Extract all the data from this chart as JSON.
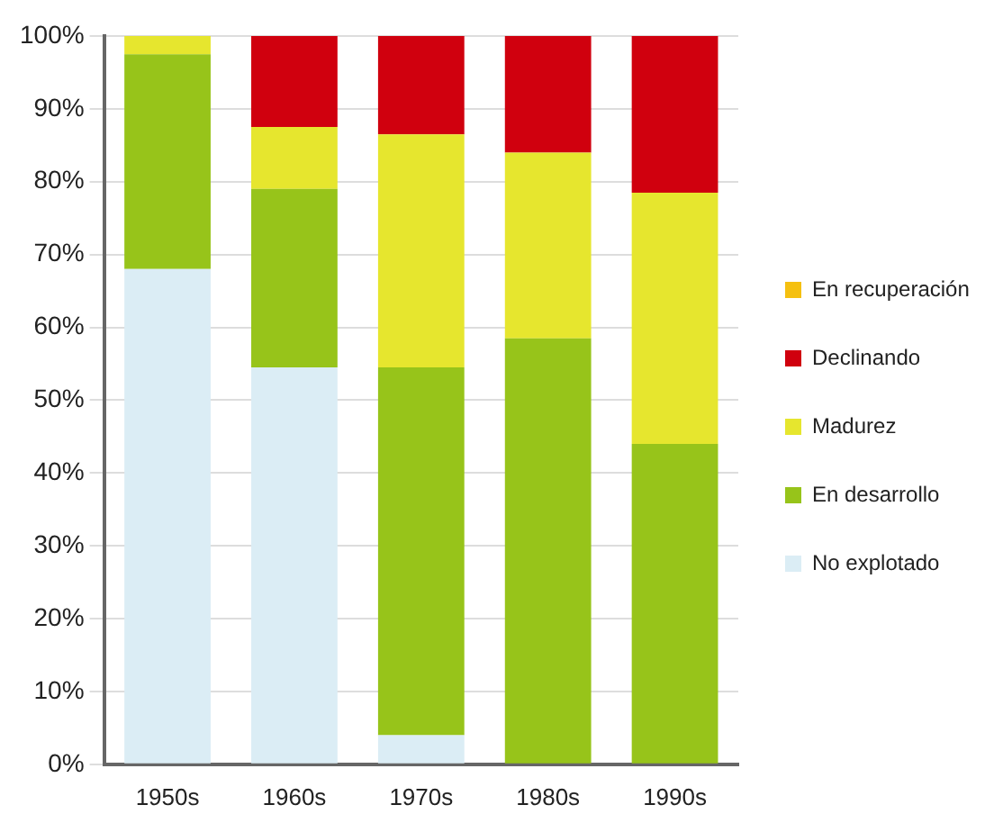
{
  "chart_data": {
    "type": "bar",
    "stacked": true,
    "categories": [
      "1950s",
      "1960s",
      "1970s",
      "1980s",
      "1990s"
    ],
    "series": [
      {
        "name": "No explotado",
        "color": "#dbedf5",
        "values": [
          68,
          54.5,
          4,
          0,
          0
        ]
      },
      {
        "name": "En desarrollo",
        "color": "#97c41a",
        "values": [
          29.5,
          24.5,
          50.5,
          58.5,
          44
        ]
      },
      {
        "name": "Madurez",
        "color": "#e6e62e",
        "values": [
          2.5,
          8.5,
          32,
          25.5,
          34.5
        ]
      },
      {
        "name": "Declinando",
        "color": "#d0000e",
        "values": [
          0,
          12.5,
          13.5,
          16,
          21.5
        ]
      },
      {
        "name": "En recuperación",
        "color": "#f5c010",
        "values": [
          0,
          0,
          0,
          0,
          0
        ]
      }
    ],
    "ylim": [
      0,
      100
    ],
    "yticks": [
      {
        "value": 0,
        "label": "0%"
      },
      {
        "value": 10,
        "label": "10%"
      },
      {
        "value": 20,
        "label": "20%"
      },
      {
        "value": 30,
        "label": "30%"
      },
      {
        "value": 40,
        "label": "40%"
      },
      {
        "value": 50,
        "label": "50%"
      },
      {
        "value": 60,
        "label": "60%"
      },
      {
        "value": 70,
        "label": "70%"
      },
      {
        "value": 80,
        "label": "80%"
      },
      {
        "value": 90,
        "label": "90%"
      },
      {
        "value": 100,
        "label": "100%"
      }
    ],
    "grid": "y",
    "legend": "right"
  }
}
